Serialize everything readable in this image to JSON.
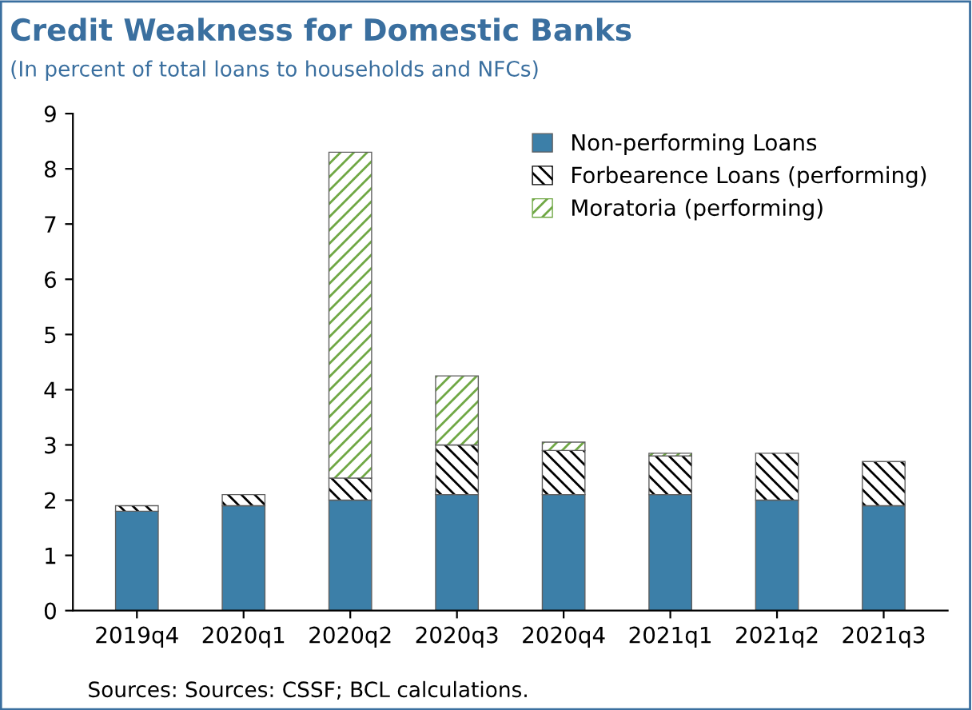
{
  "chart_data": {
    "type": "bar",
    "title": "Credit Weakness for Domestic Banks",
    "subtitle": "(In percent of total loans to households and NFCs)",
    "categories": [
      "2019q4",
      "2020q1",
      "2020q2",
      "2020q3",
      "2020q4",
      "2021q1",
      "2021q2",
      "2021q3"
    ],
    "stacked": true,
    "series": [
      {
        "name": "Non-performing Loans",
        "color": "#3c7fa8",
        "values": [
          1.8,
          1.9,
          2.0,
          2.1,
          2.1,
          2.1,
          2.0,
          1.9
        ]
      },
      {
        "name": "Forbearence Loans (performing)",
        "color": "#000000",
        "values": [
          0.1,
          0.2,
          0.4,
          0.9,
          0.8,
          0.7,
          0.85,
          0.8
        ]
      },
      {
        "name": "Moratoria (performing)",
        "color": "#70a845",
        "values": [
          null,
          null,
          5.9,
          1.25,
          0.15,
          0.05,
          null,
          null
        ]
      }
    ],
    "ylim": [
      0,
      9
    ],
    "yticks": [
      0,
      1,
      2,
      3,
      4,
      5,
      6,
      7,
      8,
      9
    ],
    "legend": "top right",
    "annotations": [
      "Sources: Sources: CSSF; BCL calculations."
    ]
  }
}
